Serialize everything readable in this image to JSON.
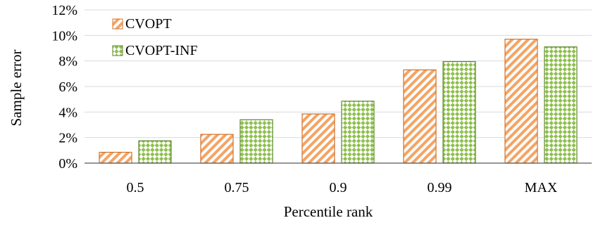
{
  "chart_data": {
    "type": "bar",
    "xlabel": "Percentile rank",
    "ylabel": "Sample error",
    "categories": [
      "0.5",
      "0.75",
      "0.9",
      "0.99",
      "MAX"
    ],
    "ylim": [
      0,
      12
    ],
    "y_ticks": [
      0,
      2,
      4,
      6,
      8,
      10,
      12
    ],
    "y_tick_labels": [
      "0%",
      "2%",
      "4%",
      "6%",
      "8%",
      "10%",
      "12%"
    ],
    "y_unit": "%",
    "grid": "horizontal",
    "legend_position": "top-left",
    "series": [
      {
        "name": "CVOPT",
        "values": [
          0.85,
          2.25,
          3.85,
          7.3,
          9.7
        ],
        "color": "#f4a464",
        "edge": "#d0702a",
        "pattern": "diagonal-stripes"
      },
      {
        "name": "CVOPT-INF",
        "values": [
          1.75,
          3.4,
          4.85,
          7.95,
          9.1
        ],
        "color": "#8fbf4f",
        "edge": "#5e8a2a",
        "pattern": "diamond-checker"
      }
    ]
  }
}
